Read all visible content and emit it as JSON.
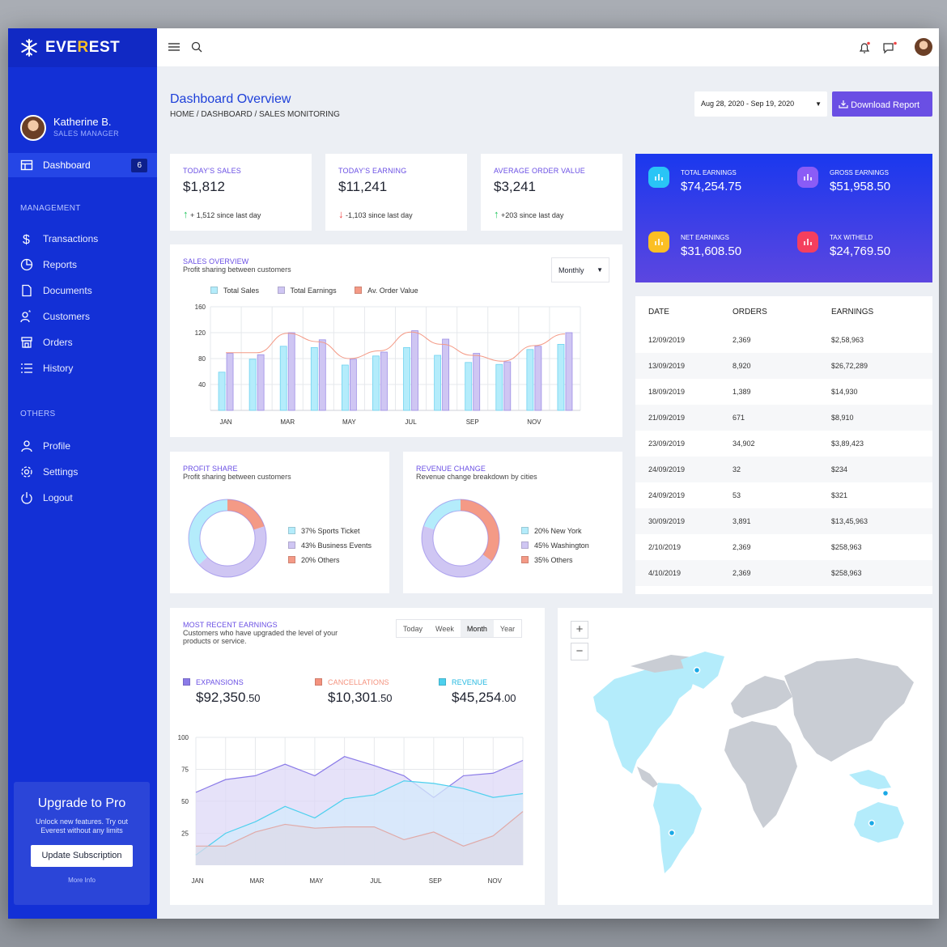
{
  "brand": {
    "name_prefix": "EVE",
    "name_mid": "R",
    "name_suffix": "EST"
  },
  "user": {
    "name": "Katherine B.",
    "role": "SALES MANAGER"
  },
  "nav": {
    "active": {
      "label": "Dashboard",
      "badge": "6"
    },
    "sections": {
      "management": "MANAGEMENT",
      "others": "OTHERS"
    },
    "items": [
      "Transactions",
      "Reports",
      "Documents",
      "Customers",
      "Orders",
      "History",
      "Profile",
      "Settings",
      "Logout"
    ]
  },
  "upgrade": {
    "title": "Upgrade to Pro",
    "text": "Unlock new features. Try out Everest without any limits",
    "button": "Update Subscription",
    "more": "More Info"
  },
  "header": {
    "title": "Dashboard Overview",
    "breadcrumb": "HOME  /  DASHBOARD  /  SALES MONITORING",
    "date_range": "Aug 28, 2020 - Sep 19, 2020",
    "download": "Download Report"
  },
  "stats": [
    {
      "label": "TODAY'S SALES",
      "value": "$1,812",
      "delta": "+ 1,512",
      "suffix": "since last day",
      "dir": "up"
    },
    {
      "label": "TODAY'S EARNING",
      "value": "$11,241",
      "delta": "-1,103",
      "suffix": "since last day",
      "dir": "down"
    },
    {
      "label": "AVERAGE ORDER VALUE",
      "value": "$3,241",
      "delta": "+203",
      "suffix": "since last day",
      "dir": "up"
    }
  ],
  "earnings": [
    {
      "label": "TOTAL EARNINGS",
      "value": "$74,254.75",
      "color": "#29c5f6"
    },
    {
      "label": "GROSS EARNINGS",
      "value": "$51,958.50",
      "color": "#8b5cf6"
    },
    {
      "label": "NET EARNINGS",
      "value": "$31,608.50",
      "color": "#fbbf24"
    },
    {
      "label": "TAX WITHELD",
      "value": "$24,769.50",
      "color": "#f43f5e"
    }
  ],
  "sales_overview": {
    "label": "SALES OVERVIEW",
    "subtitle": "Profit sharing between customers",
    "period": "Monthly"
  },
  "table": {
    "headers": [
      "DATE",
      "ORDERS",
      "EARNINGS"
    ],
    "rows": [
      [
        "12/09/2019",
        "2,369",
        "$2,58,963"
      ],
      [
        "13/09/2019",
        "8,920",
        "$26,72,289"
      ],
      [
        "18/09/2019",
        "1,389",
        "$14,930"
      ],
      [
        "21/09/2019",
        "671",
        "$8,910"
      ],
      [
        "23/09/2019",
        "34,902",
        "$3,89,423"
      ],
      [
        "24/09/2019",
        "32",
        "$234"
      ],
      [
        "24/09/2019",
        "53",
        "$321"
      ],
      [
        "30/09/2019",
        "3,891",
        "$13,45,963"
      ],
      [
        "2/10/2019",
        "2,369",
        "$258,963"
      ],
      [
        "4/10/2019",
        "2,369",
        "$258,963"
      ]
    ]
  },
  "profit_share": {
    "label": "PROFIT SHARE",
    "subtitle": "Profit sharing between customers"
  },
  "revenue_change": {
    "label": "REVENUE CHANGE",
    "subtitle": "Revenue change breakdown by cities"
  },
  "recent": {
    "label": "MOST RECENT EARNINGS",
    "subtitle": "Customers who have upgraded the level of your products or service.",
    "tabs": [
      "Today",
      "Week",
      "Month",
      "Year"
    ],
    "active_tab": "Month",
    "metrics": [
      {
        "label": "EXPANSIONS",
        "value": "$92,350",
        "cents": ".50",
        "color": "#8b7be8"
      },
      {
        "label": "CANCELLATIONS",
        "value": "$10,301",
        "cents": ".50",
        "color": "#f4927e"
      },
      {
        "label": "REVENUE",
        "value": "$45,254",
        "cents": ".00",
        "color": "#4dd0ee"
      }
    ]
  },
  "map": {
    "zoom_in": "+",
    "zoom_out": "−"
  },
  "chart_data": [
    {
      "type": "bar",
      "categories": [
        "JAN",
        "FEB",
        "MAR",
        "APR",
        "MAY",
        "JUN",
        "JUL",
        "AUG",
        "SEP",
        "OCT",
        "NOV",
        "DEC"
      ],
      "x_tick_labels": [
        "JAN",
        "",
        "MAR",
        "",
        "MAY",
        "",
        "JUL",
        "",
        "SEP",
        "",
        "NOV",
        ""
      ],
      "series": [
        {
          "name": "Total Sales",
          "values": [
            59,
            79,
            99,
            97,
            70,
            84,
            97,
            85,
            74,
            71,
            94,
            102
          ],
          "color": "#b4ecfb"
        },
        {
          "name": "Total Earnings",
          "values": [
            88,
            86,
            120,
            109,
            79,
            90,
            123,
            110,
            88,
            75,
            99,
            120
          ],
          "color": "#cfc6f3"
        },
        {
          "name": "Av. Order Value",
          "values": [
            89,
            89,
            119,
            106,
            80,
            92,
            121,
            102,
            85,
            76,
            100,
            118
          ],
          "color": "#f49a86"
        }
      ],
      "ylim": [
        0,
        160
      ],
      "y_ticks": [
        40,
        80,
        120,
        160
      ]
    },
    {
      "type": "pie",
      "labels": [
        "37% Sports Ticket",
        "43% Business Events",
        "20% Others"
      ],
      "values": [
        37,
        43,
        20
      ],
      "colors": [
        "#b4ecfb",
        "#cfc6f3",
        "#f49a86"
      ]
    },
    {
      "type": "pie",
      "labels": [
        "20% New York",
        "45% Washington",
        "35% Others"
      ],
      "values": [
        20,
        45,
        35
      ],
      "colors": [
        "#b4ecfb",
        "#cfc6f3",
        "#f49a86"
      ]
    },
    {
      "type": "area",
      "categories": [
        "JAN",
        "FEB",
        "MAR",
        "APR",
        "MAY",
        "JUN",
        "JUL",
        "AUG",
        "SEP",
        "OCT",
        "NOV",
        "DEC"
      ],
      "x_tick_labels": [
        "JAN",
        "",
        "MAR",
        "",
        "MAY",
        "",
        "JUL",
        "",
        "SEP",
        "",
        "NOV",
        ""
      ],
      "series": [
        {
          "values": [
            57,
            67,
            70,
            79,
            70,
            85,
            78,
            70,
            53,
            70,
            72,
            82
          ],
          "color": "#8b7be8"
        },
        {
          "values": [
            8,
            25,
            34,
            46,
            37,
            52,
            55,
            66,
            64,
            60,
            53,
            56
          ],
          "color": "#4dd0ee"
        },
        {
          "values": [
            15,
            15,
            26,
            32,
            29,
            30,
            30,
            20,
            26,
            15,
            23,
            42
          ],
          "color": "#e0aaa8"
        }
      ],
      "ylim": [
        0,
        100
      ],
      "y_ticks": [
        25,
        50,
        75,
        100
      ]
    }
  ]
}
